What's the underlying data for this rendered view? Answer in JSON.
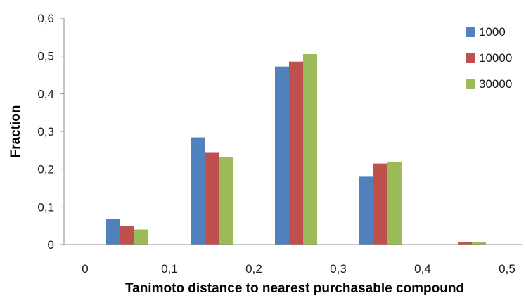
{
  "chart_data": {
    "type": "bar",
    "title": "",
    "xlabel": "Tanimoto distance to nearest purchasable compound",
    "ylabel": "Fraction",
    "x_tick_labels": [
      "0",
      "0,1",
      "0,2",
      "0,3",
      "0,4",
      "0,5"
    ],
    "y_tick_labels": [
      "0",
      "0,1",
      "0,2",
      "0,3",
      "0,4",
      "0,5",
      "0,6"
    ],
    "ylim": [
      0,
      0.6
    ],
    "xlim": [
      0,
      0.5
    ],
    "grid": false,
    "legend_position": "right",
    "bin_centers": [
      0.05,
      0.15,
      0.25,
      0.35,
      0.45
    ],
    "series": [
      {
        "name": "1000",
        "color": "#4F81BD",
        "values": [
          0.068,
          0.284,
          0.472,
          0.18,
          0.0
        ]
      },
      {
        "name": "10000",
        "color": "#C0504D",
        "values": [
          0.05,
          0.245,
          0.485,
          0.215,
          0.007
        ]
      },
      {
        "name": "30000",
        "color": "#9BBB59",
        "values": [
          0.04,
          0.231,
          0.505,
          0.22,
          0.007
        ]
      }
    ]
  }
}
